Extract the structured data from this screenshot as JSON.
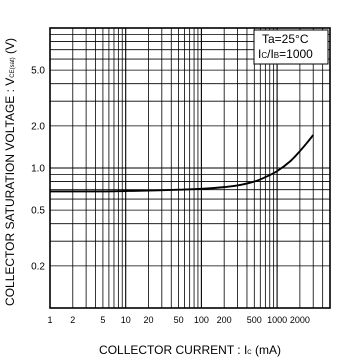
{
  "chart_data": {
    "type": "line",
    "title": "",
    "xlabel": {
      "main": "COLLECTOR CURRENT : I",
      "sub": "C",
      "unit": " (mA)"
    },
    "ylabel": {
      "main": "COLLECTOR SATURATION VOLTAGE : V",
      "sub": "CE(sat)",
      "unit": " (V)"
    },
    "x_scale": "log",
    "y_scale": "log",
    "xlim": [
      1,
      5000
    ],
    "ylim": [
      0.1,
      10
    ],
    "grid": true,
    "x_ticks": [
      {
        "value": 1,
        "label": "1"
      },
      {
        "value": 2,
        "label": "2"
      },
      {
        "value": 5,
        "label": "5"
      },
      {
        "value": 10,
        "label": "10"
      },
      {
        "value": 20,
        "label": "20"
      },
      {
        "value": 50,
        "label": "50"
      },
      {
        "value": 100,
        "label": "100"
      },
      {
        "value": 200,
        "label": "200"
      },
      {
        "value": 500,
        "label": "500"
      },
      {
        "value": 1000,
        "label": "1000"
      },
      {
        "value": 2000,
        "label": "2000"
      }
    ],
    "y_ticks": [
      {
        "value": 0.2,
        "label": "0.2"
      },
      {
        "value": 0.5,
        "label": "0.5"
      },
      {
        "value": 1.0,
        "label": "1.0"
      },
      {
        "value": 2.0,
        "label": "2.0"
      },
      {
        "value": 5.0,
        "label": "5.0"
      }
    ],
    "annotations": [
      {
        "main": "Ta=25°C"
      },
      {
        "main": "I",
        "sub": "C",
        "mid": "/I",
        "sub2": "B",
        "tail": "=1000"
      }
    ],
    "series": [
      {
        "color": "#000000",
        "x": [
          1,
          2,
          5,
          10,
          20,
          50,
          100,
          200,
          300,
          500,
          700,
          1000,
          1500,
          2000,
          2500,
          3000
        ],
        "y": [
          0.68,
          0.68,
          0.68,
          0.685,
          0.69,
          0.7,
          0.71,
          0.73,
          0.75,
          0.8,
          0.86,
          0.95,
          1.12,
          1.32,
          1.52,
          1.72
        ]
      }
    ]
  }
}
